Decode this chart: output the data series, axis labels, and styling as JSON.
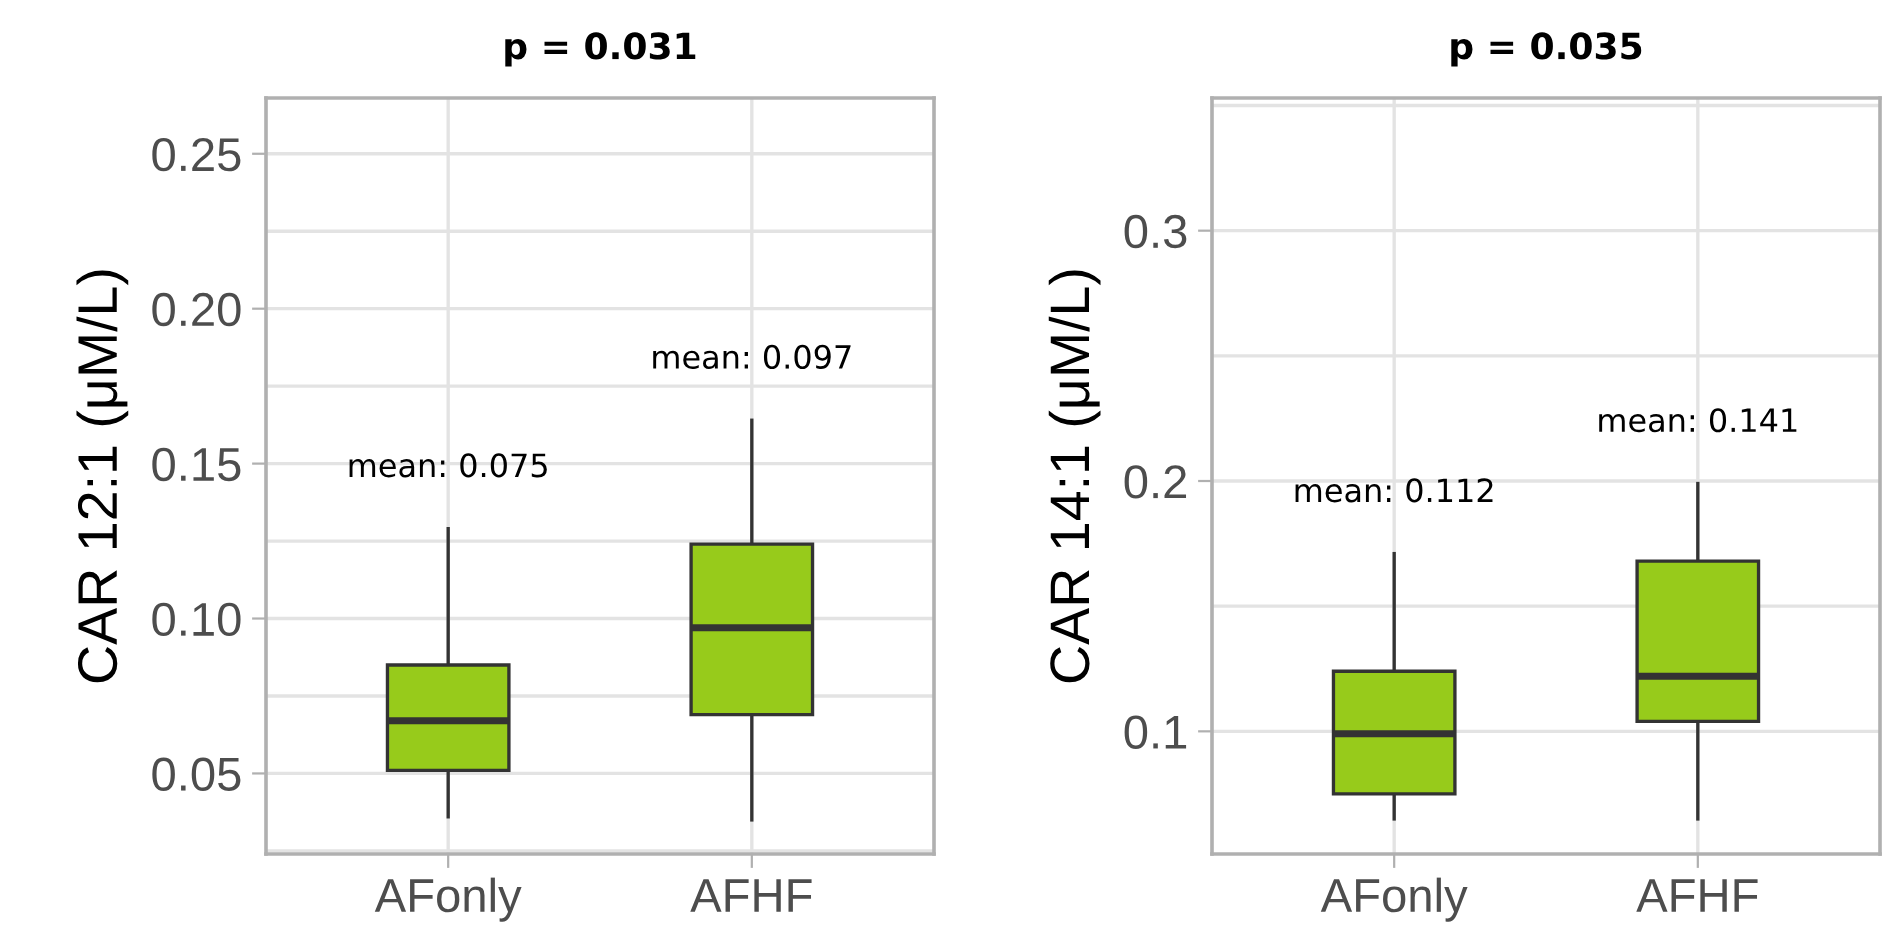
{
  "chart_data": [
    {
      "type": "box",
      "title": "p = 0.031",
      "ylabel": "CAR 12:1 (μM/L)",
      "categories": [
        "AFonly",
        "AFHF"
      ],
      "color": "#97cb1b",
      "boxes": [
        {
          "low": 0.036,
          "q1": 0.051,
          "median": 0.067,
          "q3": 0.085,
          "high": 0.129
        },
        {
          "low": 0.035,
          "q1": 0.069,
          "median": 0.097,
          "q3": 0.124,
          "high": 0.164
        }
      ],
      "ylim": [
        0.024,
        0.268
      ],
      "yticks": [
        {
          "value": 0.05,
          "label": "0.05"
        },
        {
          "value": 0.1,
          "label": "0.10"
        },
        {
          "value": 0.15,
          "label": "0.15"
        },
        {
          "value": 0.2,
          "label": "0.20"
        },
        {
          "value": 0.25,
          "label": "0.25"
        }
      ],
      "grid": true,
      "annotations": [
        "mean: 0.075",
        "mean: 0.097"
      ]
    },
    {
      "type": "box",
      "title": "p = 0.035",
      "ylabel": "CAR 14:1 (μM/L)",
      "categories": [
        "AFonly",
        "AFHF"
      ],
      "color": "#97cb1b",
      "boxes": [
        {
          "low": 0.065,
          "q1": 0.075,
          "median": 0.099,
          "q3": 0.124,
          "high": 0.171
        },
        {
          "low": 0.065,
          "q1": 0.104,
          "median": 0.122,
          "q3": 0.168,
          "high": 0.199
        }
      ],
      "ylim": [
        0.051,
        0.353
      ],
      "yticks": [
        0.1,
        0.2,
        0.3
      ],
      "grid": true,
      "annotations": [
        "mean: 0.112",
        "mean: 0.141"
      ]
    }
  ]
}
